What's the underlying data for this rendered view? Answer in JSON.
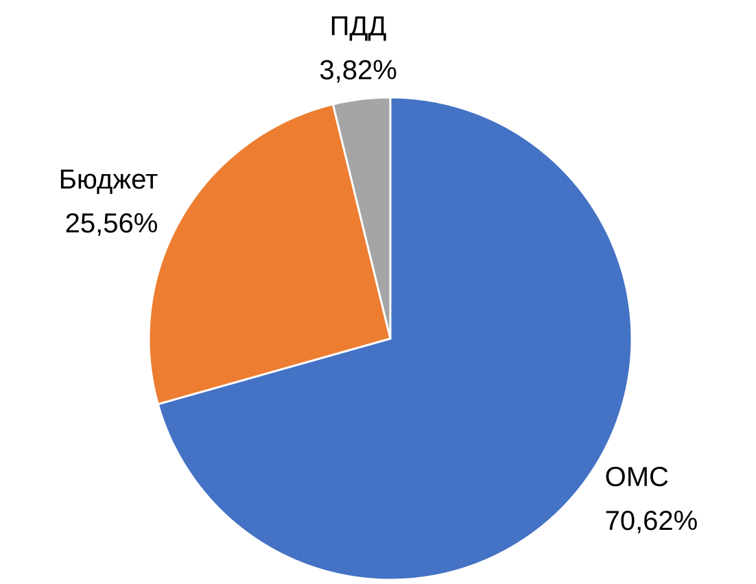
{
  "chart_data": {
    "type": "pie",
    "categories": [
      "ОМС",
      "Бюджет",
      "ПДД"
    ],
    "values": [
      70.62,
      25.56,
      3.82
    ],
    "value_labels": [
      "70,62%",
      "25,56%",
      "3,82%"
    ],
    "colors": [
      "#4472c4",
      "#ed7d31",
      "#a5a5a5"
    ]
  }
}
